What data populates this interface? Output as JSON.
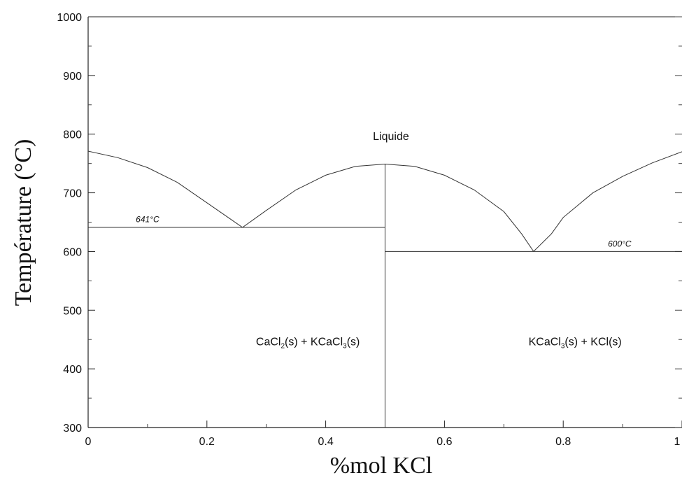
{
  "chart_data": {
    "type": "line",
    "title": "",
    "xlabel": "%mol KCl",
    "ylabel": "Température (°C)",
    "xlim": [
      0,
      1
    ],
    "ylim": [
      300,
      1000
    ],
    "x_ticks": [
      "0",
      "0.2",
      "0.4",
      "0.6",
      "0.8",
      "1"
    ],
    "x_tick_values": [
      0,
      0.2,
      0.4,
      0.6,
      0.8,
      1.0
    ],
    "y_ticks": [
      "1000",
      "900",
      "800",
      "700",
      "600",
      "500",
      "400",
      "300"
    ],
    "y_tick_values": [
      1000,
      900,
      800,
      700,
      600,
      500,
      400,
      300
    ],
    "grid": false,
    "series": [
      {
        "name": "liquidus",
        "x": [
          0,
          0.05,
          0.1,
          0.15,
          0.2,
          0.24,
          0.26,
          0.3,
          0.35,
          0.4,
          0.45,
          0.5,
          0.55,
          0.6,
          0.65,
          0.7,
          0.73,
          0.75,
          0.78,
          0.8,
          0.85,
          0.9,
          0.95,
          1.0
        ],
        "y": [
          771,
          760,
          743,
          718,
          683,
          655,
          641,
          670,
          705,
          730,
          745,
          749,
          745,
          730,
          705,
          668,
          630,
          600,
          630,
          658,
          700,
          728,
          751,
          770
        ]
      },
      {
        "name": "eutectic-641",
        "x": [
          0,
          0.5
        ],
        "y": [
          641,
          641
        ]
      },
      {
        "name": "eutectic-600",
        "x": [
          0.5,
          1.0
        ],
        "y": [
          600,
          600
        ]
      },
      {
        "name": "compound-KCaCl3",
        "x": [
          0.5,
          0.5
        ],
        "y": [
          300,
          749
        ]
      }
    ],
    "annotations": [
      {
        "key": "liquide",
        "text": "Liquide",
        "x": 0.51,
        "y": 790
      },
      {
        "key": "t641",
        "text": "641°C",
        "x": 0.1,
        "y": 650
      },
      {
        "key": "t600",
        "text": "600°C",
        "x": 0.895,
        "y": 608
      },
      {
        "key": "left_region",
        "x": 0.37,
        "y": 440
      },
      {
        "key": "right_region",
        "x": 0.82,
        "y": 440
      }
    ],
    "region_labels": {
      "left": {
        "prefix": "CaCl",
        "sub1": "2",
        "mid": "(s) + KCaCl",
        "sub2": "3",
        "suffix": "(s)"
      },
      "right": {
        "prefix": "KCaCl",
        "sub1": "3",
        "suffix": "(s) + KCl(s)"
      }
    }
  }
}
